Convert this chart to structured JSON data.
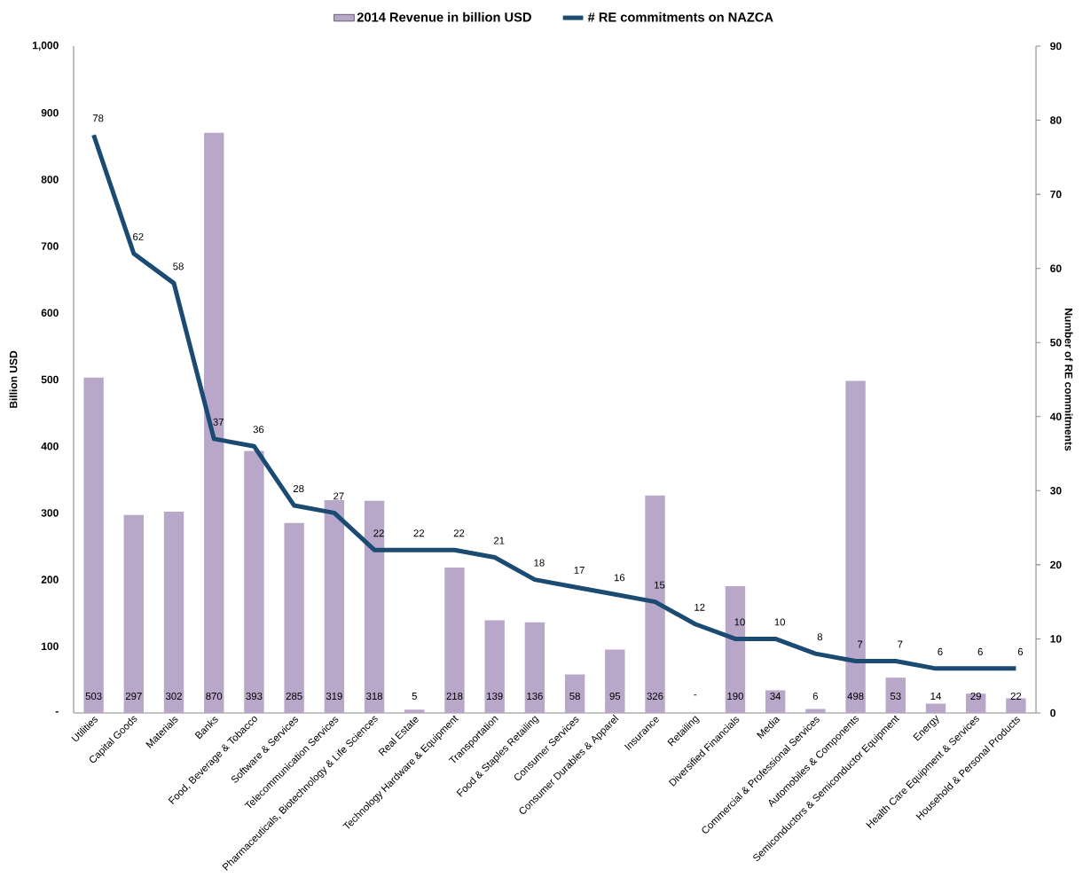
{
  "chart_data": {
    "type": "bar",
    "categories": [
      "Utilities",
      "Capital Goods",
      "Materials",
      "Banks",
      "Food, Beverage & Tobacco",
      "Software & Services",
      "Telecommunication Services",
      "Pharmaceuticals, Biotechnology & Life Sciences",
      "Real Estate",
      "Technology Hardware & Equipment",
      "Transportation",
      "Food & Staples Retailing",
      "Consumer Services",
      "Consumer Durables & Apparel",
      "Insurance",
      "Retailing",
      "Diversified Financials",
      "Media",
      "Commercial & Professional Services",
      "Automobiles & Components",
      "Semiconductors & Semiconductor Equipment",
      "Energy",
      "Health Care Equipment & Services",
      "Household & Personal Products"
    ],
    "series": [
      {
        "name": "2014 Revenue in billion USD",
        "color": "#b9a7c9",
        "values": [
          503,
          297,
          302,
          870,
          393,
          285,
          319,
          318,
          5,
          218,
          139,
          136,
          58,
          95,
          326,
          0,
          190,
          34,
          6,
          498,
          53,
          14,
          29,
          22
        ],
        "value_labels": [
          "503",
          "297",
          "302",
          "870",
          "393",
          "285",
          "319",
          "318",
          "5",
          "218",
          "139",
          "136",
          "58",
          "95",
          "326",
          "-",
          "190",
          "34",
          "6",
          "498",
          "53",
          "14",
          "29",
          "22"
        ]
      },
      {
        "name": "# RE commitments on NAZCA",
        "type": "line",
        "axis": "y2",
        "color": "#1b4a72",
        "values": [
          78,
          62,
          58,
          37,
          36,
          28,
          27,
          22,
          22,
          22,
          21,
          18,
          17,
          16,
          15,
          12,
          10,
          10,
          8,
          7,
          7,
          6,
          6,
          6
        ],
        "value_labels": [
          "78",
          "62",
          "58",
          "37",
          "36",
          "28",
          "27",
          "22",
          "22",
          "22",
          "21",
          "18",
          "17",
          "16",
          "15",
          "12",
          "10",
          "10",
          "8",
          "7",
          "7",
          "6",
          "6",
          "6"
        ]
      }
    ],
    "ylabel": "Billion USD",
    "y2label": "Number of RE commitments",
    "ylim": [
      0,
      1000
    ],
    "yticks": [
      {
        "value": 0,
        "label": "-"
      },
      100,
      200,
      300,
      400,
      500,
      600,
      700,
      800,
      900,
      {
        "value": 1000,
        "label": "1,000"
      }
    ],
    "y2lim": [
      0,
      90
    ],
    "y2ticks": [
      0,
      10,
      20,
      30,
      40,
      50,
      60,
      70,
      80,
      90
    ],
    "legend": "top"
  }
}
